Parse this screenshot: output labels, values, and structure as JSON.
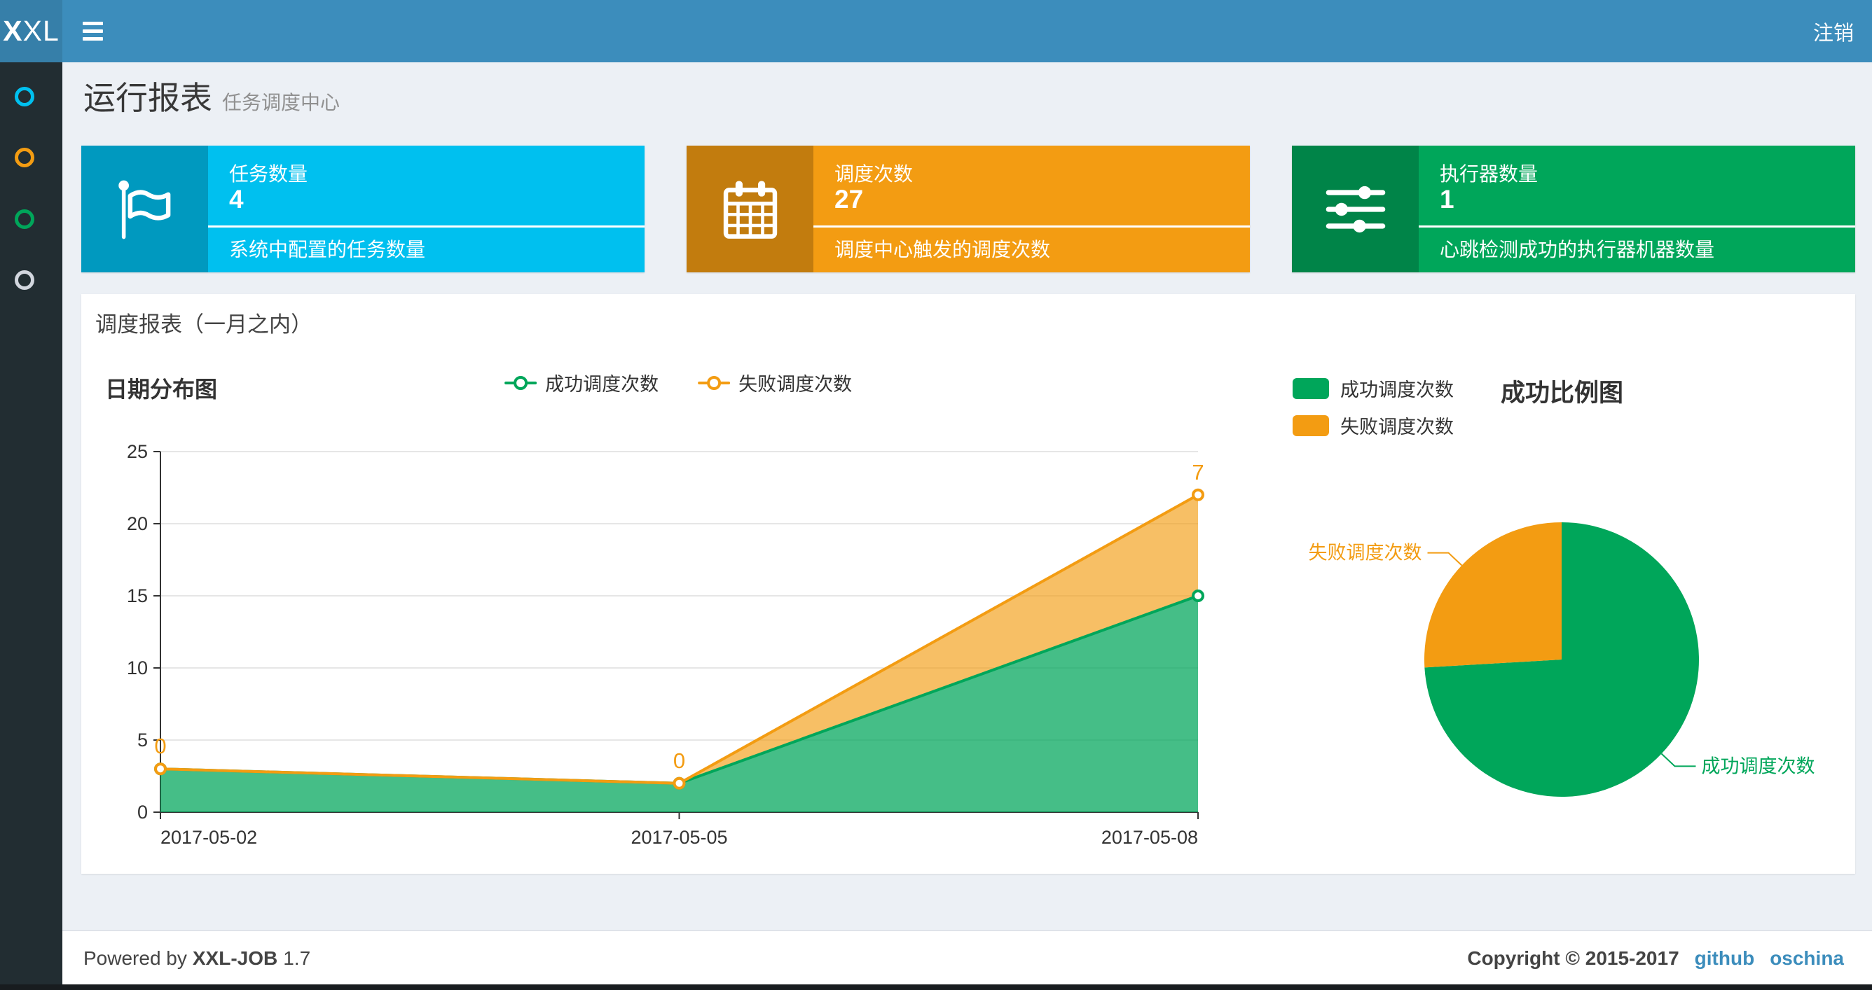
{
  "navbar": {
    "logo_bold": "X",
    "logo_rest": "XL",
    "logout_label": "注销"
  },
  "sidebar": {
    "items": [
      {
        "icon": "circle-icon",
        "color": "#00c0ef"
      },
      {
        "icon": "circle-icon",
        "color": "#f39c12"
      },
      {
        "icon": "circle-icon",
        "color": "#00a65a"
      },
      {
        "icon": "circle-icon",
        "color": "#d2d6de"
      }
    ]
  },
  "page_header": {
    "title": "运行报表",
    "subtitle": "任务调度中心"
  },
  "info_boxes": [
    {
      "label": "任务数量",
      "value": "4",
      "description": "系统中配置的任务数量",
      "color": "#00c0ef",
      "icon": "flag-icon"
    },
    {
      "label": "调度次数",
      "value": "27",
      "description": "调度中心触发的调度次数",
      "color": "#f39c12",
      "icon": "calendar-icon"
    },
    {
      "label": "执行器数量",
      "value": "1",
      "description": "心跳检测成功的执行器机器数量",
      "color": "#00a65a",
      "icon": "sliders-icon"
    }
  ],
  "panel": {
    "title": "调度报表（一月之内）"
  },
  "chart_data": [
    {
      "type": "area",
      "title": "日期分布图",
      "x": [
        "2017-05-02",
        "2017-05-05",
        "2017-05-08"
      ],
      "series": [
        {
          "name": "成功调度次数",
          "values": [
            3,
            2,
            15
          ],
          "color": "#00a65a"
        },
        {
          "name": "失败调度次数",
          "values": [
            0,
            0,
            7
          ],
          "color": "#f39c12"
        }
      ],
      "stacked": true,
      "ylim": [
        0,
        25
      ],
      "yticks": [
        0,
        5,
        10,
        15,
        20,
        25
      ],
      "point_labels": {
        "series": "失败调度次数",
        "values": [
          "0",
          "0",
          "7"
        ],
        "color": "#f39c12"
      },
      "legend_position": "top-center",
      "grid": "horizontal"
    },
    {
      "type": "pie",
      "title": "成功比例图",
      "slices": [
        {
          "label": "成功调度次数",
          "value": 20,
          "color": "#00a65a"
        },
        {
          "label": "失败调度次数",
          "value": 7,
          "color": "#f39c12"
        }
      ],
      "start_angle": "top",
      "direction": "clockwise",
      "legend_position": "top-left"
    }
  ],
  "footer": {
    "powered_prefix": "Powered by",
    "brand": "XXL-JOB",
    "version": "1.7",
    "copyright": "Copyright © 2015-2017",
    "links": [
      {
        "label": "github"
      },
      {
        "label": "oschina"
      }
    ]
  }
}
